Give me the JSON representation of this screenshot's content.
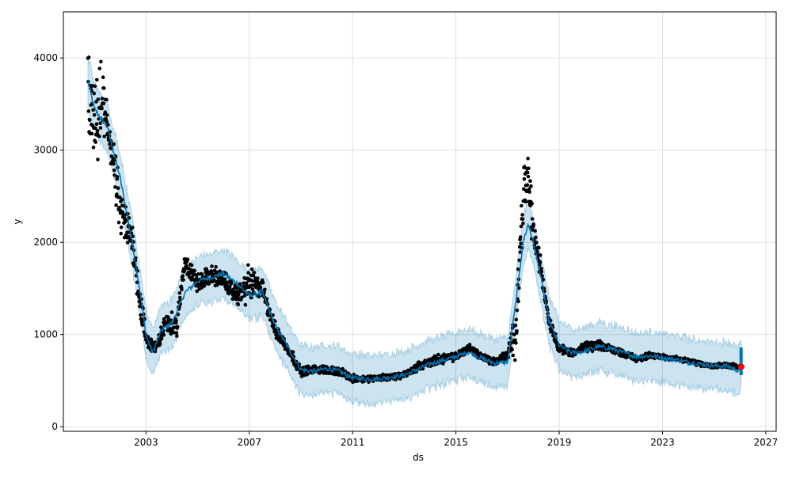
{
  "chart_data": {
    "type": "line",
    "title": "",
    "xlabel": "ds",
    "ylabel": "y",
    "xlim": [
      1999.8,
      2027.4
    ],
    "ylim": [
      -50,
      4500
    ],
    "xticks": [
      2003,
      2007,
      2011,
      2015,
      2019,
      2023,
      2027
    ],
    "yticks": [
      0,
      1000,
      2000,
      3000,
      4000
    ],
    "grid": true,
    "interval_halfwidth": 260,
    "colors": {
      "forecast": "#0072B2",
      "interval": "#0072B2",
      "observed": "#000000",
      "highlight": "#ff0000"
    },
    "forecast": [
      [
        2000.75,
        3750
      ],
      [
        2001.0,
        3450
      ],
      [
        2001.5,
        3250
      ],
      [
        2002.0,
        2700
      ],
      [
        2002.5,
        1950
      ],
      [
        2002.8,
        1400
      ],
      [
        2003.0,
        1000
      ],
      [
        2003.25,
        800
      ],
      [
        2003.6,
        1050
      ],
      [
        2004.0,
        1120
      ],
      [
        2004.5,
        1450
      ],
      [
        2005.0,
        1580
      ],
      [
        2005.5,
        1620
      ],
      [
        2006.0,
        1660
      ],
      [
        2006.5,
        1560
      ],
      [
        2007.0,
        1420
      ],
      [
        2007.5,
        1460
      ],
      [
        2008.0,
        1100
      ],
      [
        2008.5,
        860
      ],
      [
        2009.0,
        620
      ],
      [
        2009.5,
        600
      ],
      [
        2010.0,
        630
      ],
      [
        2010.5,
        600
      ],
      [
        2011.0,
        530
      ],
      [
        2011.5,
        520
      ],
      [
        2012.0,
        520
      ],
      [
        2012.5,
        540
      ],
      [
        2013.0,
        560
      ],
      [
        2013.5,
        620
      ],
      [
        2014.0,
        680
      ],
      [
        2014.5,
        720
      ],
      [
        2015.0,
        760
      ],
      [
        2015.5,
        810
      ],
      [
        2016.0,
        740
      ],
      [
        2016.5,
        690
      ],
      [
        2017.0,
        700
      ],
      [
        2017.3,
        1300
      ],
      [
        2017.6,
        2000
      ],
      [
        2017.8,
        2200
      ],
      [
        2018.0,
        2000
      ],
      [
        2018.3,
        1600
      ],
      [
        2018.6,
        1150
      ],
      [
        2019.0,
        880
      ],
      [
        2019.5,
        800
      ],
      [
        2020.0,
        820
      ],
      [
        2020.5,
        870
      ],
      [
        2021.0,
        850
      ],
      [
        2021.5,
        800
      ],
      [
        2022.0,
        760
      ],
      [
        2022.5,
        770
      ],
      [
        2023.0,
        750
      ],
      [
        2023.5,
        730
      ],
      [
        2024.0,
        700
      ],
      [
        2024.5,
        680
      ],
      [
        2025.0,
        660
      ],
      [
        2025.5,
        660
      ],
      [
        2026.0,
        600
      ],
      [
        2026.05,
        700
      ]
    ],
    "observed": [
      [
        2000.75,
        3600,
        600
      ],
      [
        2001.0,
        3200,
        500
      ],
      [
        2001.3,
        3500,
        600
      ],
      [
        2001.6,
        3150,
        300
      ],
      [
        2002.0,
        2300,
        350
      ],
      [
        2002.5,
        2000,
        250
      ],
      [
        2002.8,
        1300,
        250
      ],
      [
        2003.0,
        950,
        120
      ],
      [
        2003.4,
        850,
        100
      ],
      [
        2003.8,
        1150,
        120
      ],
      [
        2004.2,
        1100,
        150
      ],
      [
        2004.5,
        1800,
        150
      ],
      [
        2005.0,
        1550,
        120
      ],
      [
        2005.5,
        1650,
        120
      ],
      [
        2006.0,
        1600,
        120
      ],
      [
        2006.5,
        1420,
        120
      ],
      [
        2007.0,
        1550,
        250
      ],
      [
        2007.5,
        1500,
        120
      ],
      [
        2008.0,
        1050,
        100
      ],
      [
        2008.5,
        850,
        80
      ],
      [
        2009.0,
        600,
        60
      ],
      [
        2009.5,
        620,
        50
      ],
      [
        2010.0,
        620,
        50
      ],
      [
        2010.5,
        600,
        50
      ],
      [
        2011.0,
        520,
        50
      ],
      [
        2011.5,
        520,
        40
      ],
      [
        2012.0,
        530,
        40
      ],
      [
        2012.5,
        540,
        40
      ],
      [
        2013.0,
        560,
        40
      ],
      [
        2013.5,
        650,
        50
      ],
      [
        2014.0,
        700,
        60
      ],
      [
        2014.5,
        740,
        60
      ],
      [
        2015.0,
        760,
        50
      ],
      [
        2015.5,
        860,
        60
      ],
      [
        2016.0,
        760,
        50
      ],
      [
        2016.5,
        700,
        50
      ],
      [
        2017.0,
        780,
        60
      ],
      [
        2017.3,
        1000,
        300
      ],
      [
        2017.6,
        2500,
        400
      ],
      [
        2017.8,
        2700,
        450
      ],
      [
        2018.0,
        2100,
        200
      ],
      [
        2018.3,
        1700,
        150
      ],
      [
        2018.6,
        1150,
        80
      ],
      [
        2019.0,
        850,
        60
      ],
      [
        2019.5,
        800,
        50
      ],
      [
        2020.0,
        860,
        60
      ],
      [
        2020.5,
        880,
        60
      ],
      [
        2021.0,
        850,
        50
      ],
      [
        2021.5,
        790,
        40
      ],
      [
        2022.0,
        740,
        40
      ],
      [
        2022.5,
        770,
        40
      ],
      [
        2023.0,
        760,
        40
      ],
      [
        2023.5,
        740,
        30
      ],
      [
        2024.0,
        710,
        30
      ],
      [
        2024.5,
        680,
        30
      ],
      [
        2025.0,
        660,
        30
      ],
      [
        2025.5,
        670,
        30
      ],
      [
        2026.0,
        640,
        30
      ]
    ],
    "highlight_point": [
      2026.05,
      650
    ]
  }
}
